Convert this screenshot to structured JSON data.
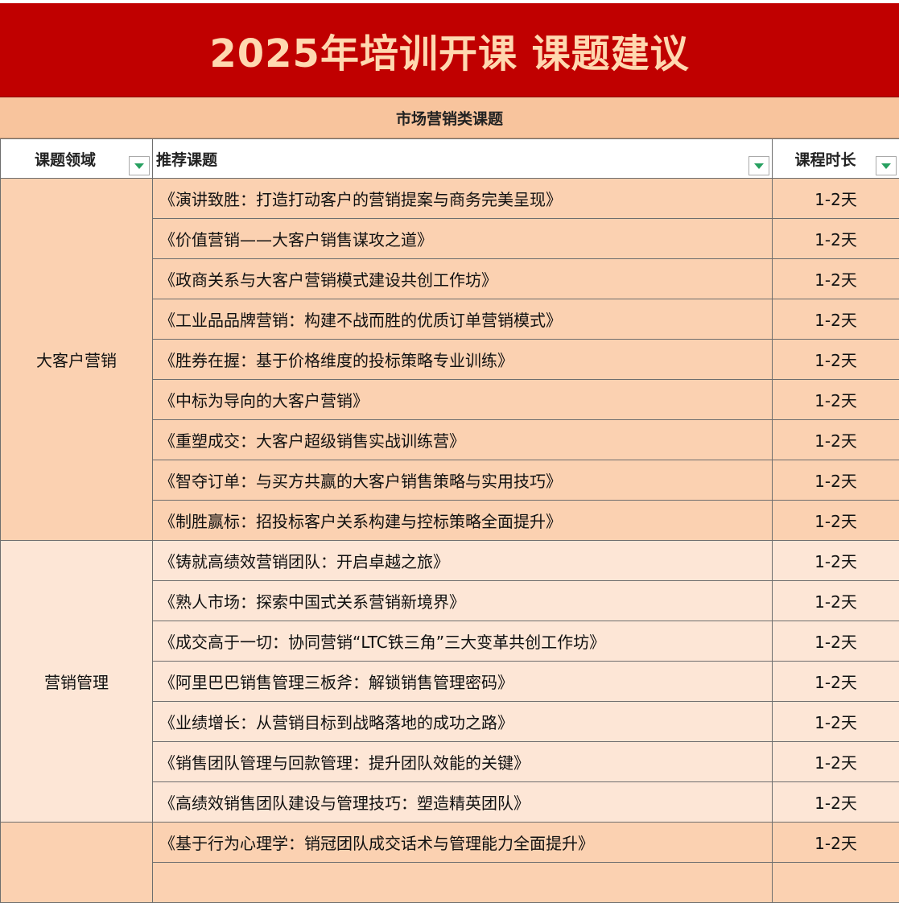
{
  "title": "2025年培训开课 课题建议",
  "section": "市场营销类课题",
  "headers": {
    "domain": "课题领域",
    "topic": "推荐课题",
    "duration": "课程时长"
  },
  "icons": {
    "filter": "filter-dropdown-icon",
    "filter_color": "#27a060"
  },
  "groups": [
    {
      "domain": "大客户营销",
      "rows": [
        {
          "topic": "《演讲致胜：打造打动客户的营销提案与商务完美呈现》",
          "duration": "1-2天"
        },
        {
          "topic": "《价值营销——大客户销售谋攻之道》",
          "duration": "1-2天"
        },
        {
          "topic": "《政商关系与大客户营销模式建设共创工作坊》",
          "duration": "1-2天"
        },
        {
          "topic": "《工业品品牌营销：构建不战而胜的优质订单营销模式》",
          "duration": "1-2天"
        },
        {
          "topic": "《胜券在握：基于价格维度的投标策略专业训练》",
          "duration": "1-2天"
        },
        {
          "topic": "《中标为导向的大客户营销》",
          "duration": "1-2天"
        },
        {
          "topic": "《重塑成交：大客户超级销售实战训练营》",
          "duration": "1-2天"
        },
        {
          "topic": "《智夺订单：与买方共赢的大客户销售策略与实用技巧》",
          "duration": "1-2天"
        },
        {
          "topic": "《制胜赢标：招投标客户关系构建与控标策略全面提升》",
          "duration": "1-2天"
        }
      ]
    },
    {
      "domain": "营销管理",
      "rows": [
        {
          "topic": "《铸就高绩效营销团队：开启卓越之旅》",
          "duration": "1-2天"
        },
        {
          "topic": "《熟人市场：探索中国式关系营销新境界》",
          "duration": "1-2天"
        },
        {
          "topic": "《成交高于一切：协同营销“LTC铁三角”三大变革共创工作坊》",
          "duration": "1-2天"
        },
        {
          "topic": "《阿里巴巴销售管理三板斧：解锁销售管理密码》",
          "duration": "1-2天"
        },
        {
          "topic": "《业绩增长：从营销目标到战略落地的成功之路》",
          "duration": "1-2天"
        },
        {
          "topic": "《销售团队管理与回款管理：提升团队效能的关键》",
          "duration": "1-2天"
        },
        {
          "topic": "《高绩效销售团队建设与管理技巧：塑造精英团队》",
          "duration": "1-2天"
        }
      ]
    },
    {
      "domain": "",
      "rows": [
        {
          "topic": "《基于行为心理学：销冠团队成交话术与管理能力全面提升》",
          "duration": "1-2天"
        },
        {
          "topic": "",
          "duration": ""
        }
      ]
    }
  ]
}
